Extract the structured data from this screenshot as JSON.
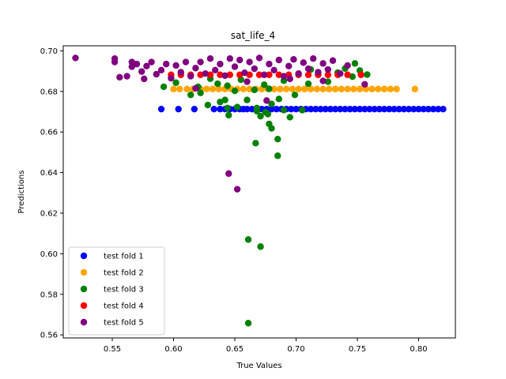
{
  "chart_data": {
    "type": "scatter",
    "title": "sat_life_4",
    "xlabel": "True Values",
    "ylabel": "Predictions",
    "xlim": [
      0.51,
      0.83
    ],
    "ylim": [
      0.5585,
      0.7025
    ],
    "xticks": [
      0.55,
      0.6,
      0.65,
      0.7,
      0.75,
      0.8
    ],
    "xtick_labels": [
      "0.55",
      "0.60",
      "0.65",
      "0.70",
      "0.75",
      "0.80"
    ],
    "yticks": [
      0.56,
      0.58,
      0.6,
      0.62,
      0.64,
      0.66,
      0.68,
      0.7
    ],
    "ytick_labels": [
      "0.56",
      "0.58",
      "0.60",
      "0.62",
      "0.64",
      "0.66",
      "0.68",
      "0.70"
    ],
    "grid": false,
    "legend_position": "lower-left",
    "series": [
      {
        "name": "test fold 1",
        "color": "#0000ff",
        "points": [
          [
            0.59,
            0.6713
          ],
          [
            0.604,
            0.6713
          ],
          [
            0.617,
            0.6713
          ],
          [
            0.633,
            0.6713
          ],
          [
            0.638,
            0.6713
          ],
          [
            0.642,
            0.6713
          ],
          [
            0.646,
            0.6713
          ],
          [
            0.65,
            0.6713
          ],
          [
            0.654,
            0.6713
          ],
          [
            0.657,
            0.6713
          ],
          [
            0.66,
            0.6713
          ],
          [
            0.664,
            0.6713
          ],
          [
            0.668,
            0.6713
          ],
          [
            0.672,
            0.6713
          ],
          [
            0.676,
            0.6713
          ],
          [
            0.68,
            0.6713
          ],
          [
            0.684,
            0.6713
          ],
          [
            0.688,
            0.6713
          ],
          [
            0.692,
            0.6713
          ],
          [
            0.696,
            0.6713
          ],
          [
            0.7,
            0.6713
          ],
          [
            0.704,
            0.6713
          ],
          [
            0.708,
            0.6713
          ],
          [
            0.712,
            0.6713
          ],
          [
            0.716,
            0.6713
          ],
          [
            0.72,
            0.6713
          ],
          [
            0.724,
            0.6713
          ],
          [
            0.728,
            0.6713
          ],
          [
            0.732,
            0.6713
          ],
          [
            0.736,
            0.6713
          ],
          [
            0.74,
            0.6713
          ],
          [
            0.744,
            0.6713
          ],
          [
            0.748,
            0.6713
          ],
          [
            0.752,
            0.6713
          ],
          [
            0.756,
            0.6713
          ],
          [
            0.76,
            0.6713
          ],
          [
            0.764,
            0.6713
          ],
          [
            0.768,
            0.6713
          ],
          [
            0.772,
            0.6713
          ],
          [
            0.776,
            0.6713
          ],
          [
            0.78,
            0.6713
          ],
          [
            0.784,
            0.6713
          ],
          [
            0.788,
            0.6713
          ],
          [
            0.792,
            0.6713
          ],
          [
            0.796,
            0.6713
          ],
          [
            0.8,
            0.6713
          ],
          [
            0.804,
            0.6713
          ],
          [
            0.808,
            0.6713
          ],
          [
            0.812,
            0.6713
          ],
          [
            0.816,
            0.6713
          ],
          [
            0.82,
            0.6713
          ]
        ]
      },
      {
        "name": "test fold 2",
        "color": "#ffa500",
        "points": [
          [
            0.6,
            0.6812
          ],
          [
            0.605,
            0.6812
          ],
          [
            0.611,
            0.6812
          ],
          [
            0.616,
            0.6812
          ],
          [
            0.622,
            0.6812
          ],
          [
            0.627,
            0.6812
          ],
          [
            0.632,
            0.6812
          ],
          [
            0.637,
            0.6812
          ],
          [
            0.642,
            0.6812
          ],
          [
            0.647,
            0.6812
          ],
          [
            0.652,
            0.6812
          ],
          [
            0.657,
            0.6812
          ],
          [
            0.662,
            0.6812
          ],
          [
            0.667,
            0.6812
          ],
          [
            0.672,
            0.6812
          ],
          [
            0.677,
            0.6812
          ],
          [
            0.682,
            0.6812
          ],
          [
            0.687,
            0.6812
          ],
          [
            0.692,
            0.6812
          ],
          [
            0.697,
            0.6812
          ],
          [
            0.702,
            0.6812
          ],
          [
            0.707,
            0.6812
          ],
          [
            0.712,
            0.6812
          ],
          [
            0.717,
            0.6812
          ],
          [
            0.722,
            0.6812
          ],
          [
            0.727,
            0.6812
          ],
          [
            0.732,
            0.6812
          ],
          [
            0.737,
            0.6812
          ],
          [
            0.742,
            0.6812
          ],
          [
            0.747,
            0.6812
          ],
          [
            0.752,
            0.6812
          ],
          [
            0.757,
            0.6812
          ],
          [
            0.762,
            0.6812
          ],
          [
            0.767,
            0.6812
          ],
          [
            0.772,
            0.6812
          ],
          [
            0.777,
            0.6812
          ],
          [
            0.782,
            0.6812
          ],
          [
            0.797,
            0.6812
          ]
        ]
      },
      {
        "name": "test fold 3",
        "color": "#008000",
        "points": [
          [
            0.661,
            0.5658
          ],
          [
            0.661,
            0.607
          ],
          [
            0.671,
            0.6035
          ],
          [
            0.685,
            0.6483
          ],
          [
            0.667,
            0.6545
          ],
          [
            0.685,
            0.6565
          ],
          [
            0.68,
            0.6618
          ],
          [
            0.678,
            0.664
          ],
          [
            0.695,
            0.6673
          ],
          [
            0.671,
            0.6678
          ],
          [
            0.645,
            0.6683
          ],
          [
            0.677,
            0.6688
          ],
          [
            0.675,
            0.6698
          ],
          [
            0.668,
            0.6703
          ],
          [
            0.69,
            0.6708
          ],
          [
            0.705,
            0.6708
          ],
          [
            0.668,
            0.6718
          ],
          [
            0.644,
            0.6718
          ],
          [
            0.652,
            0.6723
          ],
          [
            0.628,
            0.6733
          ],
          [
            0.68,
            0.6738
          ],
          [
            0.638,
            0.6748
          ],
          [
            0.642,
            0.6758
          ],
          [
            0.66,
            0.6758
          ],
          [
            0.686,
            0.6763
          ],
          [
            0.614,
            0.6783
          ],
          [
            0.699,
            0.6783
          ],
          [
            0.622,
            0.6793
          ],
          [
            0.65,
            0.6803
          ],
          [
            0.666,
            0.6808
          ],
          [
            0.678,
            0.6813
          ],
          [
            0.62,
            0.6823
          ],
          [
            0.592,
            0.6823
          ],
          [
            0.644,
            0.6828
          ],
          [
            0.674,
            0.6833
          ],
          [
            0.636,
            0.6838
          ],
          [
            0.71,
            0.6838
          ],
          [
            0.602,
            0.6843
          ],
          [
            0.726,
            0.6848
          ],
          [
            0.69,
            0.6853
          ],
          [
            0.655,
            0.6858
          ],
          [
            0.63,
            0.6863
          ],
          [
            0.746,
            0.6873
          ],
          [
            0.718,
            0.6883
          ],
          [
            0.758,
            0.6883
          ],
          [
            0.734,
            0.6893
          ],
          [
            0.752,
            0.6903
          ],
          [
            0.74,
            0.6913
          ],
          [
            0.712,
            0.6908
          ],
          [
            0.748,
            0.6938
          ]
        ]
      },
      {
        "name": "test fold 4",
        "color": "#ff0000",
        "points": [
          [
            0.598,
            0.6882
          ],
          [
            0.606,
            0.6882
          ],
          [
            0.614,
            0.6882
          ],
          [
            0.622,
            0.6882
          ],
          [
            0.63,
            0.6882
          ],
          [
            0.638,
            0.6882
          ],
          [
            0.646,
            0.6882
          ],
          [
            0.654,
            0.6882
          ],
          [
            0.662,
            0.6882
          ],
          [
            0.67,
            0.6882
          ],
          [
            0.678,
            0.6882
          ],
          [
            0.686,
            0.6882
          ],
          [
            0.694,
            0.6882
          ],
          [
            0.702,
            0.6882
          ],
          [
            0.71,
            0.6882
          ],
          [
            0.718,
            0.6882
          ],
          [
            0.726,
            0.6882
          ],
          [
            0.734,
            0.6882
          ],
          [
            0.742,
            0.6882
          ],
          [
            0.753,
            0.6882
          ]
        ]
      },
      {
        "name": "test fold 5",
        "color": "#800080",
        "points": [
          [
            0.52,
            0.6965
          ],
          [
            0.552,
            0.6962
          ],
          [
            0.552,
            0.6945
          ],
          [
            0.556,
            0.687
          ],
          [
            0.562,
            0.6875
          ],
          [
            0.566,
            0.6945
          ],
          [
            0.566,
            0.6922
          ],
          [
            0.57,
            0.6935
          ],
          [
            0.574,
            0.6898
          ],
          [
            0.576,
            0.6862
          ],
          [
            0.578,
            0.6925
          ],
          [
            0.582,
            0.6945
          ],
          [
            0.586,
            0.6885
          ],
          [
            0.59,
            0.6905
          ],
          [
            0.594,
            0.6935
          ],
          [
            0.598,
            0.6865
          ],
          [
            0.602,
            0.6928
          ],
          [
            0.606,
            0.6895
          ],
          [
            0.61,
            0.6945
          ],
          [
            0.614,
            0.6875
          ],
          [
            0.618,
            0.6915
          ],
          [
            0.622,
            0.6945
          ],
          [
            0.626,
            0.6888
          ],
          [
            0.63,
            0.6962
          ],
          [
            0.634,
            0.6905
          ],
          [
            0.638,
            0.6935
          ],
          [
            0.642,
            0.6878
          ],
          [
            0.646,
            0.6962
          ],
          [
            0.65,
            0.6922
          ],
          [
            0.654,
            0.6955
          ],
          [
            0.658,
            0.6892
          ],
          [
            0.662,
            0.6945
          ],
          [
            0.666,
            0.6912
          ],
          [
            0.67,
            0.6965
          ],
          [
            0.674,
            0.6882
          ],
          [
            0.678,
            0.6935
          ],
          [
            0.682,
            0.6905
          ],
          [
            0.686,
            0.6955
          ],
          [
            0.69,
            0.6875
          ],
          [
            0.694,
            0.6925
          ],
          [
            0.698,
            0.6958
          ],
          [
            0.702,
            0.6888
          ],
          [
            0.706,
            0.6942
          ],
          [
            0.71,
            0.6912
          ],
          [
            0.714,
            0.6962
          ],
          [
            0.718,
            0.6895
          ],
          [
            0.722,
            0.6938
          ],
          [
            0.726,
            0.6908
          ],
          [
            0.73,
            0.6952
          ],
          [
            0.736,
            0.6888
          ],
          [
            0.742,
            0.6928
          ],
          [
            0.756,
            0.6835
          ],
          [
            0.722,
            0.6852
          ],
          [
            0.695,
            0.6862
          ],
          [
            0.66,
            0.6848
          ],
          [
            0.618,
            0.6815
          ],
          [
            0.676,
            0.6755
          ],
          [
            0.645,
            0.6395
          ],
          [
            0.652,
            0.6318
          ]
        ]
      }
    ]
  }
}
